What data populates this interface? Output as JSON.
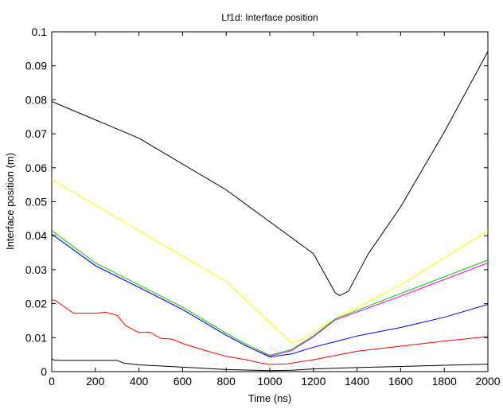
{
  "chart_data": {
    "type": "line",
    "title": "Lf1d: Interface position",
    "xlabel": "Time (ns)",
    "ylabel": "Interface position (m)",
    "xlim": [
      0,
      2000
    ],
    "ylim": [
      0,
      0.1
    ],
    "grid": false,
    "xticks": [
      0,
      200,
      400,
      600,
      800,
      1000,
      1200,
      1400,
      1600,
      1800,
      2000
    ],
    "yticks": [
      0,
      0.01,
      0.02,
      0.03,
      0.04,
      0.05,
      0.06,
      0.07,
      0.08,
      0.09,
      0.1
    ],
    "xtick_labels": [
      "0",
      "200",
      "400",
      "600",
      "800",
      "1000",
      "1200",
      "1400",
      "1600",
      "1800",
      "2000"
    ],
    "ytick_labels": [
      "0",
      "0.01",
      "0.02",
      "0.03",
      "0.04",
      "0.05",
      "0.06",
      "0.07",
      "0.08",
      "0.09",
      "0.1"
    ],
    "series": [
      {
        "color": "#000000",
        "x": [
          0,
          400,
          800,
          1200,
          1300,
          1320,
          1360,
          1450,
          1600,
          1800,
          2000
        ],
        "y": [
          0.0795,
          0.0687,
          0.0535,
          0.0347,
          0.0232,
          0.0224,
          0.0236,
          0.0345,
          0.0485,
          0.0705,
          0.0942
        ]
      },
      {
        "color": "#ffff00",
        "x": [
          0,
          400,
          800,
          1000,
          1100,
          1150,
          1300,
          1600,
          2000
        ],
        "y": [
          0.0565,
          0.0415,
          0.0265,
          0.0145,
          0.0085,
          0.0095,
          0.0155,
          0.0255,
          0.0415
        ]
      },
      {
        "color": "#00cc00",
        "x": [
          0,
          200,
          400,
          600,
          800,
          900,
          1000,
          1100,
          1200,
          1300,
          1600,
          2000
        ],
        "y": [
          0.0415,
          0.032,
          0.0255,
          0.019,
          0.0113,
          0.0078,
          0.0048,
          0.0065,
          0.0105,
          0.0155,
          0.023,
          0.0328
        ]
      },
      {
        "color": "#ff00ff",
        "x": [
          0,
          200,
          400,
          600,
          800,
          900,
          1000,
          1100,
          1200,
          1300,
          1600,
          2000
        ],
        "y": [
          0.0405,
          0.0312,
          0.0248,
          0.0183,
          0.0107,
          0.0073,
          0.0045,
          0.0062,
          0.0102,
          0.0152,
          0.0222,
          0.032
        ]
      },
      {
        "color": "#0000ff",
        "x": [
          0,
          200,
          400,
          600,
          800,
          900,
          1000,
          1100,
          1200,
          1300,
          1400,
          1600,
          1800,
          2000
        ],
        "y": [
          0.0405,
          0.0312,
          0.0248,
          0.0183,
          0.0107,
          0.0073,
          0.0043,
          0.0052,
          0.0072,
          0.0088,
          0.0105,
          0.013,
          0.016,
          0.0198
        ]
      },
      {
        "color": "#ff0000",
        "x": [
          0,
          20,
          100,
          200,
          250,
          300,
          340,
          400,
          450,
          500,
          550,
          600,
          700,
          800,
          900,
          960,
          1000,
          1080,
          1200,
          1400,
          1600,
          1800,
          2000
        ],
        "y": [
          0.0212,
          0.0208,
          0.0172,
          0.0172,
          0.0175,
          0.0165,
          0.0135,
          0.0115,
          0.0116,
          0.0098,
          0.0096,
          0.0083,
          0.0063,
          0.0045,
          0.0034,
          0.0025,
          0.0021,
          0.0023,
          0.0035,
          0.006,
          0.0075,
          0.009,
          0.0103
        ]
      },
      {
        "color": "#000000",
        "x": [
          0,
          10,
          40,
          300,
          330,
          400,
          600,
          800,
          1000,
          1100,
          1200,
          1400,
          2000
        ],
        "y": [
          0.0038,
          0.0034,
          0.0033,
          0.0033,
          0.0025,
          0.002,
          0.0013,
          0.0006,
          0.0003,
          0.0004,
          0.0008,
          0.0012,
          0.0022
        ]
      }
    ]
  }
}
